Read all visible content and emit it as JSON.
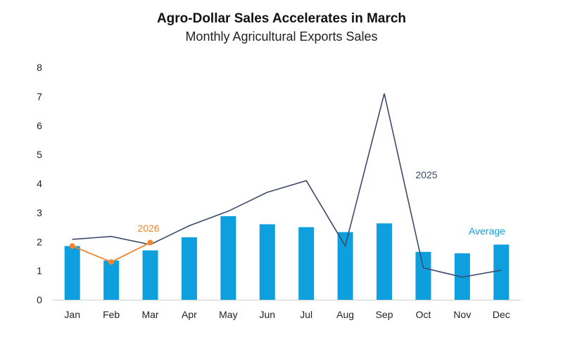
{
  "chart_data": {
    "type": "bar",
    "title": "Agro-Dollar Sales Accelerates in March",
    "subtitle": "Monthly Agricultural Exports Sales",
    "xlabel": "",
    "ylabel": "",
    "ylim": [
      0,
      8
    ],
    "yticks": [
      "0",
      "1",
      "2",
      "3",
      "4",
      "5",
      "6",
      "7",
      "8"
    ],
    "grid": false,
    "legend": "none",
    "categories": [
      "Jan",
      "Feb",
      "Mar",
      "Apr",
      "May",
      "Jun",
      "Jul",
      "Aug",
      "Sep",
      "Oct",
      "Nov",
      "Dec"
    ],
    "series": [
      {
        "name": "Average",
        "type": "bar",
        "color": "#0ea0de",
        "values": [
          1.85,
          1.35,
          1.7,
          2.15,
          2.88,
          2.6,
          2.5,
          2.33,
          2.63,
          1.65,
          1.6,
          1.9
        ]
      },
      {
        "name": "2025",
        "type": "line",
        "color": "#3b4a6b",
        "values": [
          2.08,
          2.18,
          1.9,
          2.55,
          3.05,
          3.7,
          4.1,
          1.85,
          7.1,
          1.1,
          0.78,
          1.02
        ]
      },
      {
        "name": "2026",
        "type": "line",
        "color": "#f0852d",
        "markers": true,
        "values": [
          1.85,
          1.3,
          1.97,
          null,
          null,
          null,
          null,
          null,
          null,
          null,
          null,
          null
        ]
      }
    ]
  }
}
